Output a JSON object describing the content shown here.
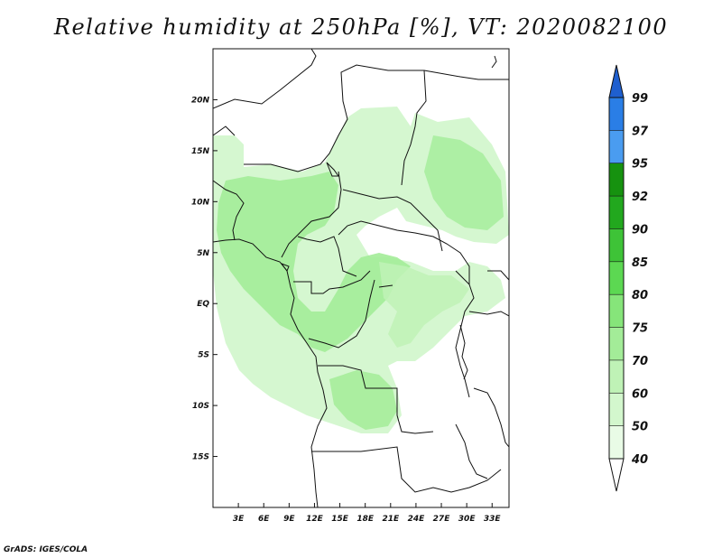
{
  "title": "Relative humidity at 250hPa [%], VT: 2020082100",
  "credit": "GrADS: IGES/COLA",
  "map": {
    "variable": "Relative humidity",
    "level": "250hPa",
    "unit": "%",
    "valid_time": "2020082100",
    "lon_range": [
      0,
      35
    ],
    "lat_range": [
      -20,
      25
    ],
    "lon_ticks": [
      {
        "value": 3,
        "label": "3E"
      },
      {
        "value": 6,
        "label": "6E"
      },
      {
        "value": 9,
        "label": "9E"
      },
      {
        "value": 12,
        "label": "12E"
      },
      {
        "value": 15,
        "label": "15E"
      },
      {
        "value": 18,
        "label": "18E"
      },
      {
        "value": 21,
        "label": "21E"
      },
      {
        "value": 24,
        "label": "24E"
      },
      {
        "value": 27,
        "label": "27E"
      },
      {
        "value": 30,
        "label": "30E"
      },
      {
        "value": 33,
        "label": "33E"
      }
    ],
    "lat_ticks": [
      {
        "value": 20,
        "label": "20N"
      },
      {
        "value": 15,
        "label": "15N"
      },
      {
        "value": 10,
        "label": "10N"
      },
      {
        "value": 5,
        "label": "5N"
      },
      {
        "value": 0,
        "label": "EQ"
      },
      {
        "value": -5,
        "label": "5S"
      },
      {
        "value": -10,
        "label": "10S"
      },
      {
        "value": -15,
        "label": "15S"
      }
    ]
  },
  "colorbar": {
    "levels": [
      {
        "label": "40",
        "color": "#e9fbe6"
      },
      {
        "label": "50",
        "color": "#d3f7cd"
      },
      {
        "label": "60",
        "color": "#bff2b6"
      },
      {
        "label": "70",
        "color": "#a3ec98"
      },
      {
        "label": "75",
        "color": "#86e57a"
      },
      {
        "label": "80",
        "color": "#5cd852"
      },
      {
        "label": "85",
        "color": "#3ec337"
      },
      {
        "label": "90",
        "color": "#22a81e"
      },
      {
        "label": "92",
        "color": "#16920f"
      },
      {
        "label": "95",
        "color": "#4a9cf0"
      },
      {
        "label": "97",
        "color": "#2a7ee6"
      },
      {
        "label": "99",
        "color": "#1f5fcf"
      }
    ],
    "below_color": "#ffffff",
    "above_color": "#1f5fcf"
  }
}
